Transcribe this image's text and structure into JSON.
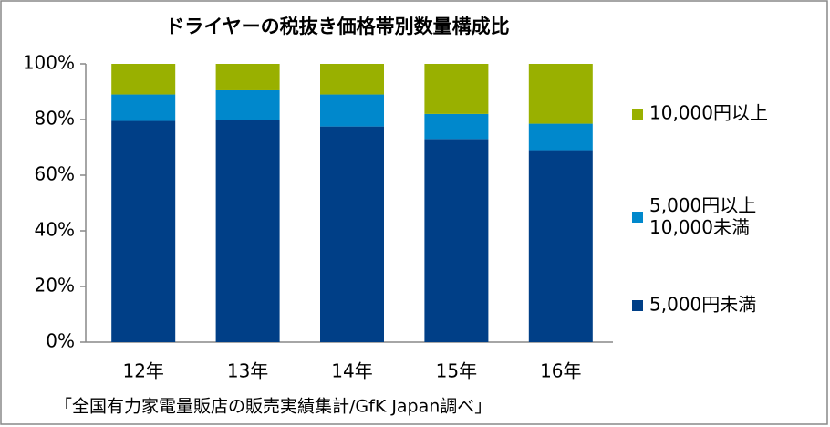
{
  "chart_data": {
    "type": "stacked_bar",
    "title": "ドライヤーの税抜き価格帯別数量構成比",
    "categories": [
      "12年",
      "13年",
      "14年",
      "15年",
      "16年"
    ],
    "series": [
      {
        "name": "5,000円未満",
        "color": "#003f87",
        "values": [
          79.5,
          80,
          77.5,
          73,
          69
        ]
      },
      {
        "name": "5,000円以上\n10,000未満",
        "color": "#0088cc",
        "values": [
          9.5,
          10.5,
          11.5,
          9,
          9.5
        ]
      },
      {
        "name": "10,000円以上",
        "color": "#99b000",
        "values": [
          11,
          9.5,
          11,
          18,
          21.5
        ]
      }
    ],
    "ylim": [
      0,
      100
    ],
    "yticks": [
      {
        "value": 0,
        "label": "0%"
      },
      {
        "value": 20,
        "label": "20%"
      },
      {
        "value": 40,
        "label": "40%"
      },
      {
        "value": 60,
        "label": "60%"
      },
      {
        "value": 80,
        "label": "80%"
      },
      {
        "value": 100,
        "label": "100%"
      }
    ],
    "legend": "right",
    "source": "「全国有力家電量販店の販売実績集計/GfK Japan調べ」"
  }
}
